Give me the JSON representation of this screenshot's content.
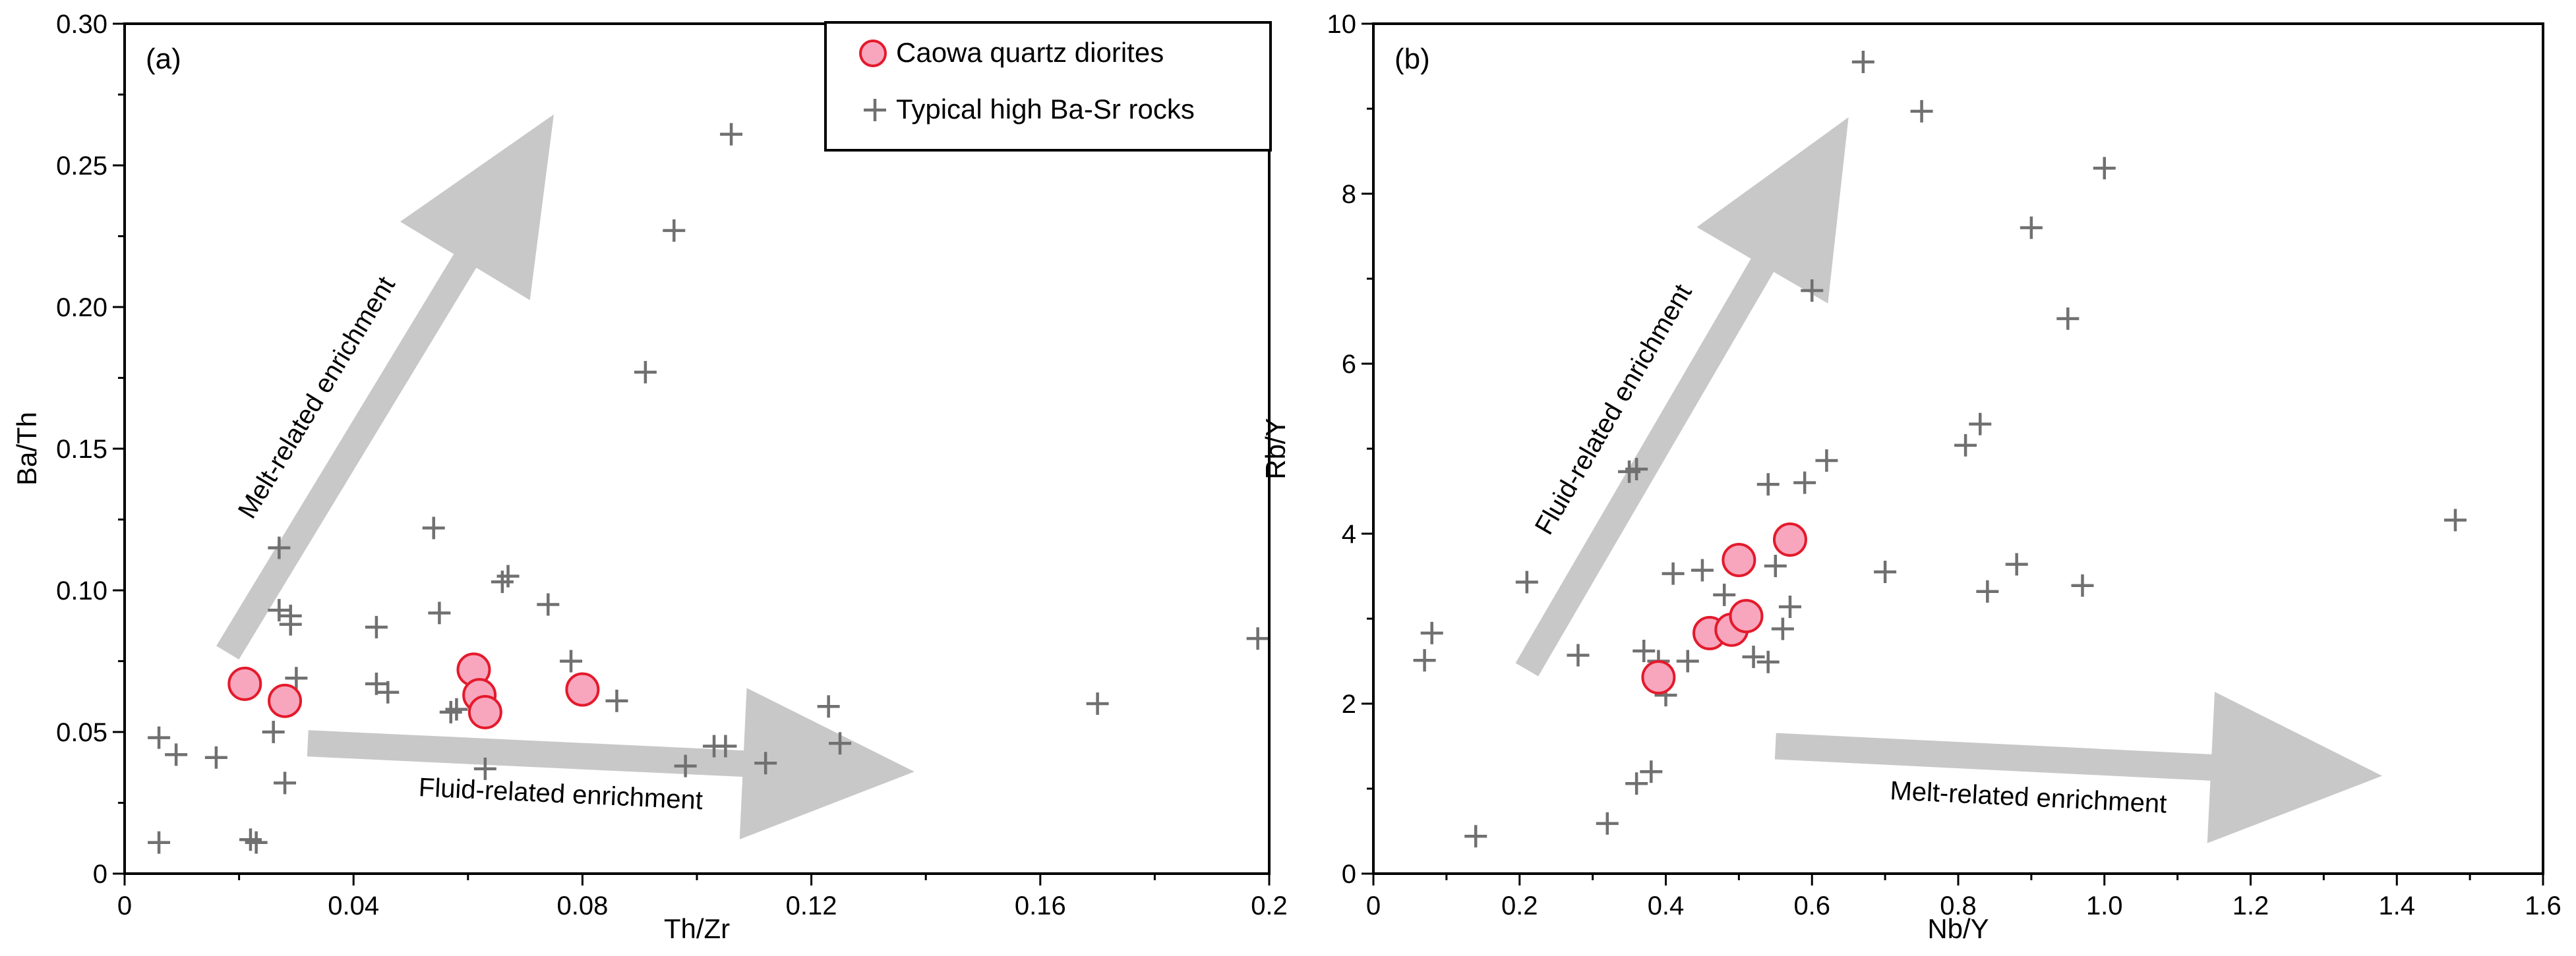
{
  "chart_data": [
    {
      "type": "scatter",
      "panel_label": "(a)",
      "xlabel": "Th/Zr",
      "ylabel": "Ba/Th",
      "xlim": [
        0,
        0.2
      ],
      "ylim": [
        0,
        0.3
      ],
      "xticks": [
        0,
        0.04,
        0.08,
        0.12,
        0.16,
        0.2
      ],
      "xtick_labels": [
        "0",
        "0.04",
        "0.08",
        "0.12",
        "0.16",
        "0.2"
      ],
      "yticks": [
        0,
        0.05,
        0.1,
        0.15,
        0.2,
        0.25,
        0.3
      ],
      "ytick_labels": [
        "0",
        "0.05",
        "0.10",
        "0.15",
        "0.20",
        "0.25",
        "0.30"
      ],
      "legend": {
        "position": "top-right",
        "entries": [
          "Caowa quartz diorites",
          "Typical high Ba-Sr rocks"
        ]
      },
      "arrows": [
        {
          "label": "Melt-related enrichment",
          "from": [
            0.018,
            0.078
          ],
          "to": [
            0.075,
            0.268
          ]
        },
        {
          "label": "Fluid-related enrichment",
          "from": [
            0.032,
            0.046
          ],
          "to": [
            0.138,
            0.036
          ]
        }
      ],
      "series": [
        {
          "name": "Caowa quartz diorites",
          "marker": "circle",
          "points": [
            [
              0.021,
              0.067
            ],
            [
              0.028,
              0.061
            ],
            [
              0.061,
              0.072
            ],
            [
              0.062,
              0.063
            ],
            [
              0.063,
              0.057
            ],
            [
              0.08,
              0.065
            ]
          ]
        },
        {
          "name": "Typical high Ba-Sr rocks",
          "marker": "cross",
          "points": [
            [
              0.006,
              0.048
            ],
            [
              0.009,
              0.042
            ],
            [
              0.016,
              0.041
            ],
            [
              0.006,
              0.011
            ],
            [
              0.022,
              0.012
            ],
            [
              0.023,
              0.011
            ],
            [
              0.026,
              0.05
            ],
            [
              0.027,
              0.093
            ],
            [
              0.027,
              0.115
            ],
            [
              0.029,
              0.091
            ],
            [
              0.029,
              0.088
            ],
            [
              0.028,
              0.032
            ],
            [
              0.03,
              0.069
            ],
            [
              0.044,
              0.067
            ],
            [
              0.044,
              0.087
            ],
            [
              0.046,
              0.064
            ],
            [
              0.054,
              0.122
            ],
            [
              0.055,
              0.092
            ],
            [
              0.057,
              0.057
            ],
            [
              0.058,
              0.058
            ],
            [
              0.063,
              0.037
            ],
            [
              0.066,
              0.103
            ],
            [
              0.067,
              0.105
            ],
            [
              0.074,
              0.095
            ],
            [
              0.078,
              0.075
            ],
            [
              0.086,
              0.061
            ],
            [
              0.091,
              0.177
            ],
            [
              0.096,
              0.227
            ],
            [
              0.098,
              0.038
            ],
            [
              0.103,
              0.045
            ],
            [
              0.105,
              0.045
            ],
            [
              0.106,
              0.261
            ],
            [
              0.112,
              0.039
            ],
            [
              0.123,
              0.059
            ],
            [
              0.125,
              0.046
            ],
            [
              0.17,
              0.06
            ],
            [
              0.198,
              0.083
            ]
          ]
        }
      ]
    },
    {
      "type": "scatter",
      "panel_label": "(b)",
      "xlabel": "Nb/Y",
      "ylabel": "Rb/Y",
      "xlim": [
        0,
        1.6
      ],
      "ylim": [
        0,
        10
      ],
      "xticks": [
        0,
        0.2,
        0.4,
        0.6,
        0.8,
        1.0,
        1.2,
        1.4,
        1.6
      ],
      "xtick_labels": [
        "0",
        "0.2",
        "0.4",
        "0.6",
        "0.8",
        "1.0",
        "1.2",
        "1.4",
        "1.6"
      ],
      "yticks": [
        0,
        2,
        4,
        6,
        8,
        10
      ],
      "ytick_labels": [
        "0",
        "2",
        "4",
        "6",
        "8",
        "10"
      ],
      "arrows": [
        {
          "label": "Fluid-related enrichment",
          "from": [
            0.21,
            2.4
          ],
          "to": [
            0.65,
            8.9
          ]
        },
        {
          "label": "Melt-related enrichment",
          "from": [
            0.55,
            1.5
          ],
          "to": [
            1.38,
            1.15
          ]
        }
      ],
      "series": [
        {
          "name": "Caowa quartz diorites",
          "marker": "circle",
          "points": [
            [
              0.39,
              2.31
            ],
            [
              0.46,
              2.83
            ],
            [
              0.49,
              2.87
            ],
            [
              0.5,
              3.69
            ],
            [
              0.51,
              3.03
            ],
            [
              0.57,
              3.93
            ]
          ]
        },
        {
          "name": "Typical high Ba-Sr rocks",
          "marker": "cross",
          "points": [
            [
              0.07,
              2.51
            ],
            [
              0.08,
              2.83
            ],
            [
              0.14,
              0.44
            ],
            [
              0.21,
              3.43
            ],
            [
              0.28,
              2.57
            ],
            [
              0.32,
              0.59
            ],
            [
              0.35,
              4.73
            ],
            [
              0.36,
              4.76
            ],
            [
              0.36,
              1.06
            ],
            [
              0.37,
              2.62
            ],
            [
              0.38,
              1.2
            ],
            [
              0.39,
              2.5
            ],
            [
              0.4,
              2.1
            ],
            [
              0.41,
              3.53
            ],
            [
              0.43,
              2.5
            ],
            [
              0.45,
              3.57
            ],
            [
              0.48,
              3.28
            ],
            [
              0.52,
              2.55
            ],
            [
              0.54,
              4.58
            ],
            [
              0.54,
              2.49
            ],
            [
              0.55,
              3.62
            ],
            [
              0.56,
              2.88
            ],
            [
              0.57,
              3.14
            ],
            [
              0.59,
              4.6
            ],
            [
              0.6,
              6.86
            ],
            [
              0.62,
              4.86
            ],
            [
              0.67,
              9.55
            ],
            [
              0.7,
              3.55
            ],
            [
              0.75,
              8.97
            ],
            [
              0.81,
              5.04
            ],
            [
              0.83,
              5.29
            ],
            [
              0.84,
              3.32
            ],
            [
              0.88,
              3.64
            ],
            [
              0.9,
              7.6
            ],
            [
              0.95,
              6.53
            ],
            [
              0.97,
              3.39
            ],
            [
              1.0,
              8.3
            ],
            [
              1.48,
              4.16
            ]
          ]
        }
      ]
    }
  ]
}
